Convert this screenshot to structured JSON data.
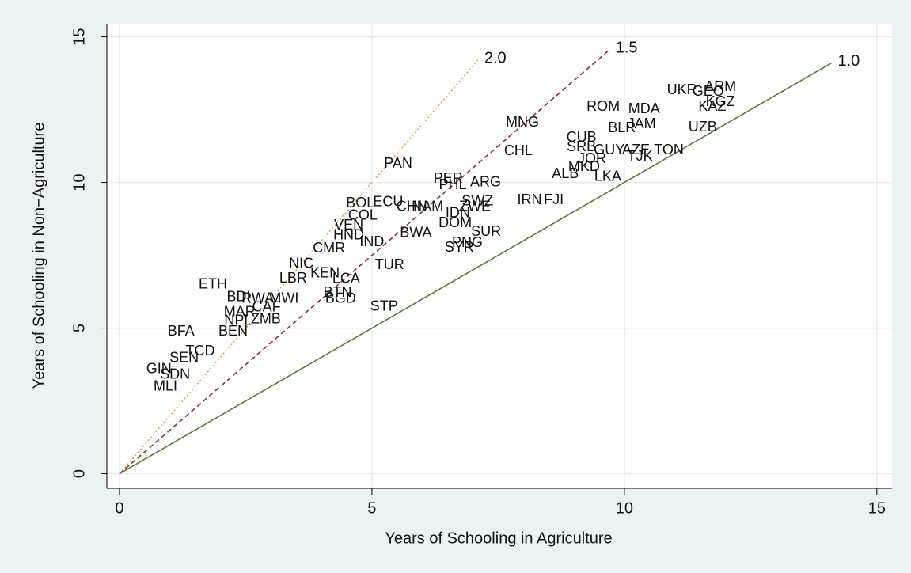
{
  "chart_data": {
    "type": "scatter",
    "xlabel": "Years of Schooling in Agriculture",
    "ylabel": "Years of Schooling in Non−Agriculture",
    "xlim": [
      -0.25,
      15.3
    ],
    "ylim": [
      -0.5,
      15.45
    ],
    "xticks": [
      0,
      5,
      10,
      15
    ],
    "yticks": [
      0,
      5,
      10,
      15
    ],
    "grid": true,
    "label_color": "#111111",
    "labels": [
      "ARM",
      "UKR",
      "GEO",
      "KGZ",
      "KAZ",
      "UZB",
      "ROM",
      "MDA",
      "JAM",
      "BLR",
      "CUB",
      "SRB",
      "GUY",
      "AZE",
      "TON",
      "TJK",
      "JOR",
      "MKD",
      "ALB",
      "LKA",
      "MNG",
      "CHL",
      "PAN",
      "PER",
      "PHL",
      "ARG",
      "IRN",
      "FJI",
      "SWZ",
      "BOL",
      "ECU",
      "CHN",
      "NAM",
      "ZWE",
      "IDN",
      "DOM",
      "SUR",
      "PNG",
      "SYR",
      "COL",
      "VEN",
      "HND",
      "BWA",
      "IND",
      "CMR",
      "TUR",
      "NIC",
      "LBR",
      "KEN",
      "LCA",
      "ETH",
      "BDI",
      "RWA",
      "MWI",
      "BTN",
      "BGD",
      "CAF",
      "MAR",
      "ZMB",
      "NPL",
      "BEN",
      "BFA",
      "TCD",
      "SEN",
      "GIN",
      "SDN",
      "MLI",
      "STP"
    ],
    "x": [
      11.9,
      11.14,
      11.66,
      11.9,
      11.74,
      11.55,
      9.58,
      10.39,
      10.34,
      9.95,
      9.15,
      9.15,
      9.7,
      10.23,
      10.88,
      10.31,
      9.36,
      9.2,
      8.83,
      9.67,
      7.98,
      7.9,
      5.52,
      6.51,
      6.6,
      7.25,
      8.12,
      8.6,
      7.09,
      4.77,
      5.32,
      5.79,
      6.1,
      7.04,
      6.7,
      6.65,
      7.26,
      6.89,
      6.73,
      4.82,
      4.54,
      4.54,
      5.87,
      5.0,
      4.15,
      5.35,
      3.6,
      3.44,
      4.07,
      4.49,
      1.85,
      2.36,
      2.74,
      3.26,
      4.32,
      4.38,
      2.91,
      2.38,
      2.9,
      2.35,
      2.25,
      1.22,
      1.6,
      1.28,
      0.78,
      1.1,
      0.91,
      5.24
    ],
    "y": [
      13.27,
      13.16,
      13.1,
      12.75,
      12.59,
      11.89,
      12.59,
      12.51,
      11.99,
      11.86,
      11.53,
      11.21,
      11.1,
      11.1,
      11.1,
      10.88,
      10.8,
      10.53,
      10.28,
      10.18,
      12.05,
      11.07,
      10.64,
      10.12,
      9.9,
      9.99,
      9.39,
      9.39,
      9.34,
      9.28,
      9.31,
      9.15,
      9.15,
      9.15,
      8.93,
      8.6,
      8.3,
      7.92,
      7.76,
      8.85,
      8.52,
      8.17,
      8.25,
      7.95,
      7.73,
      7.16,
      7.19,
      6.7,
      6.87,
      6.68,
      6.49,
      6.05,
      6.0,
      6.0,
      6.21,
      6.0,
      5.7,
      5.54,
      5.29,
      5.24,
      4.88,
      4.88,
      4.2,
      3.96,
      3.58,
      3.39,
      2.99,
      5.73
    ],
    "lines": [
      {
        "name": "2.0",
        "color": "#e8a050",
        "dash": "dotted",
        "x": [
          0,
          7.1
        ],
        "y": [
          0,
          14.2
        ]
      },
      {
        "name": "1.5",
        "color": "#8b2f3a",
        "dash": "dashed",
        "x": [
          0,
          9.7
        ],
        "y": [
          0,
          14.55
        ]
      },
      {
        "name": "1.0",
        "color": "#5a7a3a",
        "dash": "solid",
        "x": [
          0,
          14.1
        ],
        "y": [
          0,
          14.1
        ]
      }
    ]
  }
}
